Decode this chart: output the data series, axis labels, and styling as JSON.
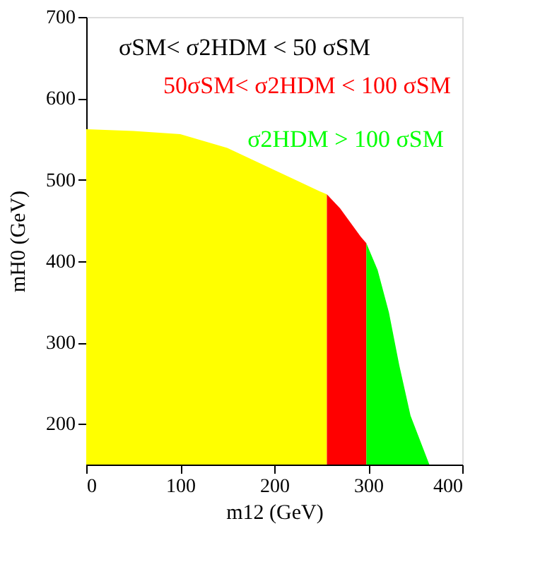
{
  "chart_data": {
    "type": "area",
    "xlabel": "m12 (GeV)",
    "ylabel": "mH0 (GeV)",
    "xlim": [
      0,
      400
    ],
    "xticks": [
      0,
      100,
      200,
      300,
      400
    ],
    "ylim": [
      150,
      700
    ],
    "yticks": [
      200,
      300,
      400,
      500,
      600,
      700
    ],
    "grid": false,
    "legend": "top right",
    "series": [
      {
        "name": "σSM< σ2HDM < 50 σSM",
        "color": "#ffff00",
        "x": [
          0,
          50,
          100,
          150,
          200,
          248,
          256
        ],
        "values": [
          562,
          560,
          556,
          539,
          512,
          486,
          482
        ]
      },
      {
        "name": "50σSM< σ2HDM < 100 σSM",
        "color": "#ff0000",
        "x": [
          256,
          270,
          292,
          298
        ],
        "values": [
          482,
          465,
          430,
          422
        ]
      },
      {
        "name": "σ2HDM > 100 σSM",
        "color": "#00ff00",
        "x": [
          298,
          310,
          322,
          333,
          345,
          365
        ],
        "values": [
          422,
          389,
          337,
          272,
          210,
          150
        ]
      }
    ]
  }
}
